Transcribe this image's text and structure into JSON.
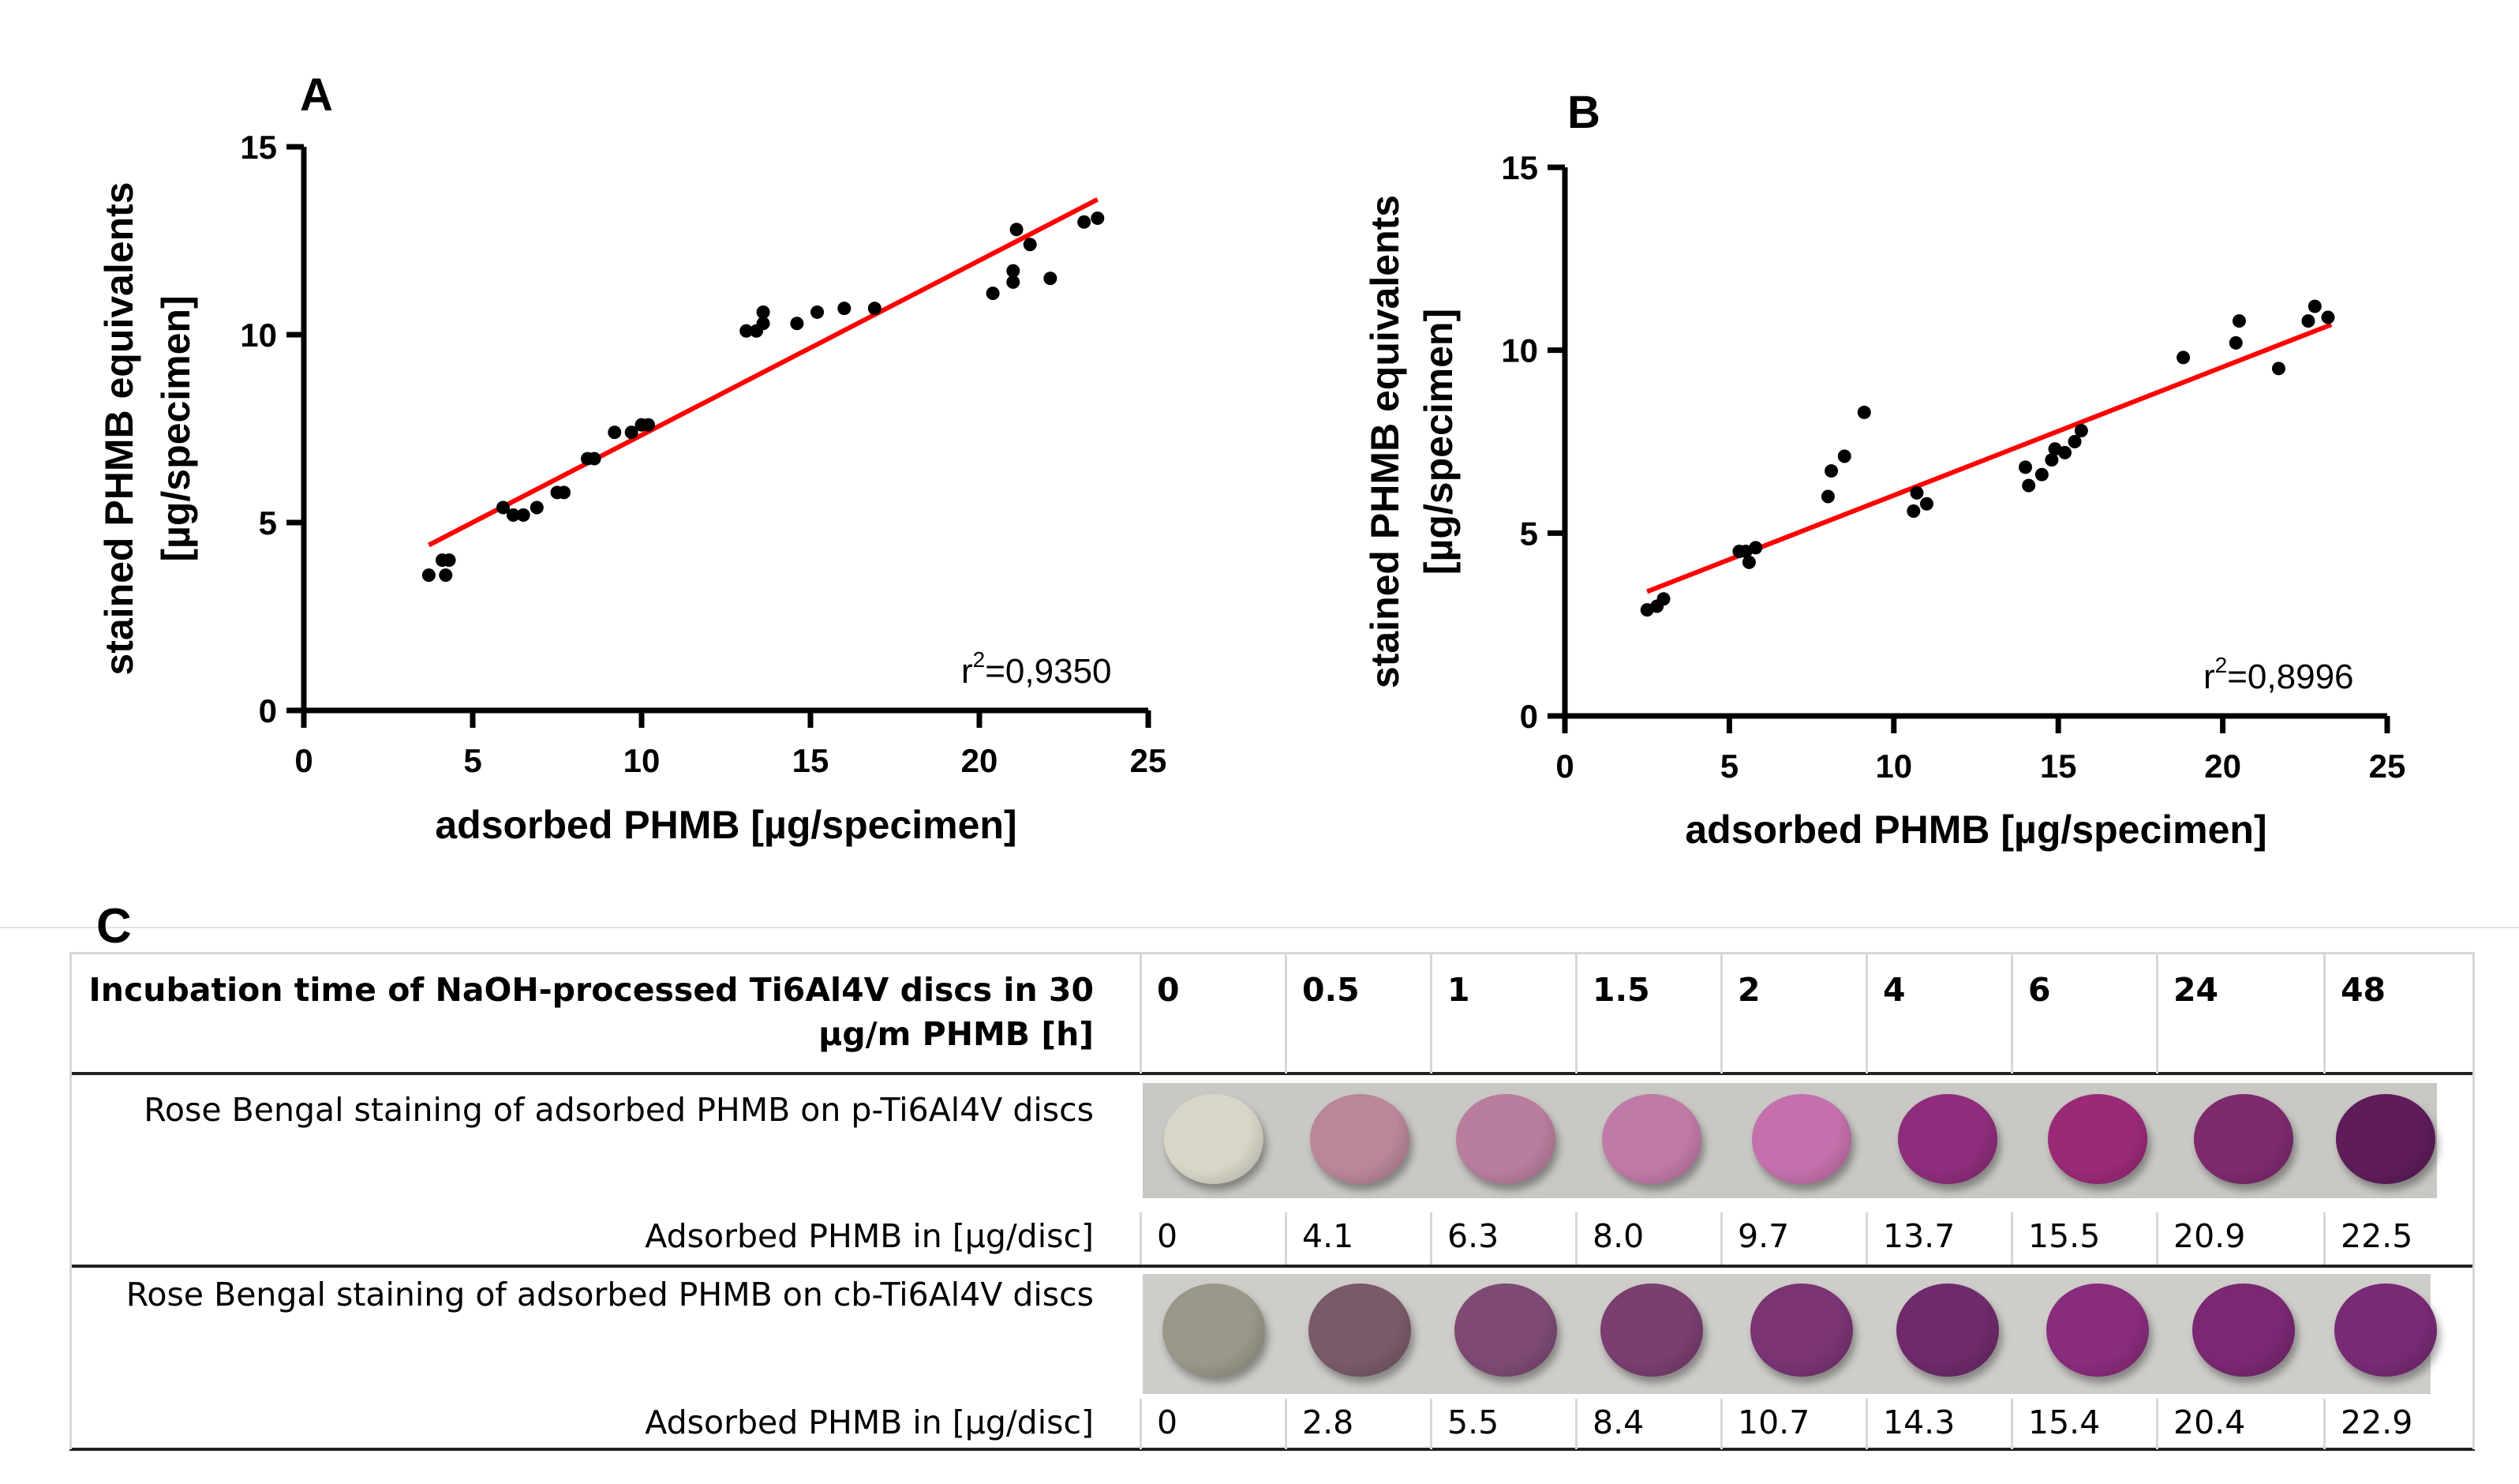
{
  "chart_data": [
    {
      "type": "scatter",
      "panel": "A",
      "xlabel": "adsorbed PHMB [µg/specimen]",
      "ylabel_line1": "stained PHMB equivalents",
      "ylabel_line2": "[µg/specimen]",
      "xlim": [
        0,
        25
      ],
      "ylim": [
        0,
        15
      ],
      "xticks": [
        "0",
        "5",
        "10",
        "15",
        "20",
        "25"
      ],
      "yticks": [
        "0",
        "5",
        "10",
        "15"
      ],
      "r2_label": "r",
      "r2_sup": "2",
      "r2_value": "=0,9350",
      "fit": {
        "x": [
          3.7,
          23.5
        ],
        "y": [
          4.4,
          13.6
        ],
        "color": "#ff0000"
      },
      "points": [
        [
          3.7,
          3.6
        ],
        [
          4.1,
          4.0
        ],
        [
          4.2,
          3.6
        ],
        [
          4.3,
          4.0
        ],
        [
          5.9,
          5.4
        ],
        [
          6.2,
          5.2
        ],
        [
          6.5,
          5.2
        ],
        [
          6.9,
          5.4
        ],
        [
          7.5,
          5.8
        ],
        [
          7.7,
          5.8
        ],
        [
          8.4,
          6.7
        ],
        [
          8.6,
          6.7
        ],
        [
          9.2,
          7.4
        ],
        [
          9.7,
          7.4
        ],
        [
          10.0,
          7.6
        ],
        [
          10.2,
          7.6
        ],
        [
          13.1,
          10.1
        ],
        [
          13.4,
          10.1
        ],
        [
          13.6,
          10.6
        ],
        [
          13.6,
          10.3
        ],
        [
          14.6,
          10.3
        ],
        [
          15.2,
          10.6
        ],
        [
          16.0,
          10.7
        ],
        [
          16.9,
          10.7
        ],
        [
          20.4,
          11.1
        ],
        [
          21.0,
          11.4
        ],
        [
          21.0,
          11.7
        ],
        [
          21.1,
          12.8
        ],
        [
          21.5,
          12.4
        ],
        [
          22.1,
          11.5
        ],
        [
          23.1,
          13.0
        ],
        [
          23.5,
          13.1
        ]
      ]
    },
    {
      "type": "scatter",
      "panel": "B",
      "xlabel": "adsorbed PHMB [µg/specimen]",
      "ylabel_line1": "stained PHMB equivalents",
      "ylabel_line2": "[µg/specimen]",
      "xlim": [
        0,
        25
      ],
      "ylim": [
        0,
        15
      ],
      "xticks": [
        "0",
        "5",
        "10",
        "15",
        "20",
        "25"
      ],
      "yticks": [
        "0",
        "5",
        "10",
        "15"
      ],
      "r2_label": "r",
      "r2_sup": "2",
      "r2_value": "=0,8996",
      "fit": {
        "x": [
          2.5,
          23.3
        ],
        "y": [
          3.4,
          10.7
        ],
        "color": "#ff0000"
      },
      "points": [
        [
          2.5,
          2.9
        ],
        [
          2.8,
          3.0
        ],
        [
          3.0,
          3.2
        ],
        [
          5.3,
          4.5
        ],
        [
          5.5,
          4.5
        ],
        [
          5.6,
          4.2
        ],
        [
          5.8,
          4.6
        ],
        [
          8.0,
          6.0
        ],
        [
          8.1,
          6.7
        ],
        [
          8.5,
          7.1
        ],
        [
          9.1,
          8.3
        ],
        [
          10.6,
          5.6
        ],
        [
          10.7,
          6.1
        ],
        [
          11.0,
          5.8
        ],
        [
          14.0,
          6.8
        ],
        [
          14.1,
          6.3
        ],
        [
          14.5,
          6.6
        ],
        [
          14.8,
          7.0
        ],
        [
          14.9,
          7.3
        ],
        [
          15.2,
          7.2
        ],
        [
          15.5,
          7.5
        ],
        [
          15.7,
          7.8
        ],
        [
          18.8,
          9.8
        ],
        [
          20.4,
          10.2
        ],
        [
          20.5,
          10.8
        ],
        [
          21.7,
          9.5
        ],
        [
          22.6,
          10.8
        ],
        [
          22.8,
          11.2
        ],
        [
          23.2,
          10.9
        ]
      ]
    }
  ],
  "panelC": {
    "letter": "C",
    "header_label_line1": "Incubation time of NaOH-processed Ti6Al4V discs in 30",
    "header_label_line2": "µg/m PHMB [h]",
    "times": [
      "0",
      "0.5",
      "1",
      "1.5",
      "2",
      "4",
      "6",
      "24",
      "48"
    ],
    "p_label": "Rose Bengal staining of adsorbed PHMB on p-Ti6Al4V discs",
    "p_value_label": "Adsorbed PHMB in [µg/disc]",
    "p_values": [
      "0",
      "4.1",
      "6.3",
      "8.0",
      "9.7",
      "13.7",
      "15.5",
      "20.9",
      "22.5"
    ],
    "p_colors": [
      "#d9d5c8",
      "#b9869a",
      "#b97e9e",
      "#c07aa6",
      "#c470ac",
      "#8e2d7c",
      "#9a2a78",
      "#7e2a6e",
      "#5e1c5a"
    ],
    "cb_label": "Rose Bengal staining of adsorbed PHMB on cb-Ti6Al4V discs",
    "cb_value_label": "Adsorbed PHMB in [µg/disc]",
    "cb_values": [
      "0",
      "2.8",
      "5.5",
      "8.4",
      "10.7",
      "14.3",
      "15.4",
      "20.4",
      "22.9"
    ],
    "cb_colors": [
      "#9a9888",
      "#7a5a6a",
      "#7e4a74",
      "#7a3e70",
      "#7a3474",
      "#6e2a6a",
      "#8a2c7c",
      "#7a2872",
      "#782a74"
    ]
  }
}
